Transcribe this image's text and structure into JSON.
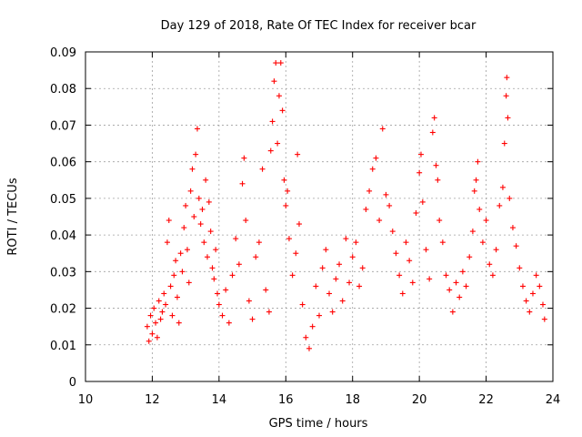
{
  "chart_data": {
    "type": "scatter",
    "title": "Day 129 of 2018, Rate Of TEC Index for receiver bcar",
    "xlabel": "GPS time / hours",
    "ylabel": "ROTI / TECUs",
    "xlim": [
      10,
      24
    ],
    "ylim": [
      0,
      0.09
    ],
    "x_ticks": [
      "10",
      "12",
      "14",
      "16",
      "18",
      "20",
      "22",
      "24"
    ],
    "y_ticks": [
      "0",
      "0.01",
      "0.02",
      "0.03",
      "0.04",
      "0.05",
      "0.06",
      "0.07",
      "0.08",
      "0.09"
    ],
    "grid": true,
    "marker": "+",
    "series": [
      {
        "color": "#ff0000",
        "points": [
          [
            11.85,
            0.015
          ],
          [
            11.9,
            0.011
          ],
          [
            11.95,
            0.018
          ],
          [
            12.0,
            0.013
          ],
          [
            12.05,
            0.02
          ],
          [
            12.1,
            0.016
          ],
          [
            12.15,
            0.012
          ],
          [
            12.2,
            0.022
          ],
          [
            12.25,
            0.017
          ],
          [
            12.3,
            0.019
          ],
          [
            12.35,
            0.024
          ],
          [
            12.4,
            0.021
          ],
          [
            12.45,
            0.038
          ],
          [
            12.5,
            0.044
          ],
          [
            12.55,
            0.026
          ],
          [
            12.6,
            0.018
          ],
          [
            12.65,
            0.029
          ],
          [
            12.7,
            0.033
          ],
          [
            12.75,
            0.023
          ],
          [
            12.8,
            0.016
          ],
          [
            12.85,
            0.035
          ],
          [
            12.9,
            0.03
          ],
          [
            12.95,
            0.042
          ],
          [
            13.0,
            0.048
          ],
          [
            13.05,
            0.036
          ],
          [
            13.1,
            0.027
          ],
          [
            13.15,
            0.052
          ],
          [
            13.2,
            0.058
          ],
          [
            13.25,
            0.045
          ],
          [
            13.3,
            0.062
          ],
          [
            13.35,
            0.069
          ],
          [
            13.4,
            0.05
          ],
          [
            13.45,
            0.043
          ],
          [
            13.5,
            0.047
          ],
          [
            13.55,
            0.038
          ],
          [
            13.6,
            0.055
          ],
          [
            13.65,
            0.034
          ],
          [
            13.7,
            0.049
          ],
          [
            13.75,
            0.041
          ],
          [
            13.8,
            0.031
          ],
          [
            13.85,
            0.028
          ],
          [
            13.9,
            0.036
          ],
          [
            13.95,
            0.024
          ],
          [
            14.0,
            0.021
          ],
          [
            14.1,
            0.018
          ],
          [
            14.2,
            0.025
          ],
          [
            14.3,
            0.016
          ],
          [
            14.4,
            0.029
          ],
          [
            14.5,
            0.039
          ],
          [
            14.6,
            0.032
          ],
          [
            14.7,
            0.054
          ],
          [
            14.75,
            0.061
          ],
          [
            14.8,
            0.044
          ],
          [
            14.9,
            0.022
          ],
          [
            15.0,
            0.017
          ],
          [
            15.1,
            0.034
          ],
          [
            15.2,
            0.038
          ],
          [
            15.3,
            0.058
          ],
          [
            15.4,
            0.025
          ],
          [
            15.5,
            0.019
          ],
          [
            15.55,
            0.063
          ],
          [
            15.6,
            0.071
          ],
          [
            15.65,
            0.082
          ],
          [
            15.7,
            0.087
          ],
          [
            15.75,
            0.065
          ],
          [
            15.8,
            0.078
          ],
          [
            15.85,
            0.087
          ],
          [
            15.9,
            0.074
          ],
          [
            15.95,
            0.055
          ],
          [
            16.0,
            0.048
          ],
          [
            16.05,
            0.052
          ],
          [
            16.1,
            0.039
          ],
          [
            16.2,
            0.029
          ],
          [
            16.3,
            0.035
          ],
          [
            16.35,
            0.062
          ],
          [
            16.4,
            0.043
          ],
          [
            16.5,
            0.021
          ],
          [
            16.6,
            0.012
          ],
          [
            16.7,
            0.009
          ],
          [
            16.8,
            0.015
          ],
          [
            16.9,
            0.026
          ],
          [
            17.0,
            0.018
          ],
          [
            17.1,
            0.031
          ],
          [
            17.2,
            0.036
          ],
          [
            17.3,
            0.024
          ],
          [
            17.4,
            0.019
          ],
          [
            17.5,
            0.028
          ],
          [
            17.6,
            0.032
          ],
          [
            17.7,
            0.022
          ],
          [
            17.8,
            0.039
          ],
          [
            17.9,
            0.027
          ],
          [
            18.0,
            0.034
          ],
          [
            18.1,
            0.038
          ],
          [
            18.2,
            0.026
          ],
          [
            18.3,
            0.031
          ],
          [
            18.4,
            0.047
          ],
          [
            18.5,
            0.052
          ],
          [
            18.6,
            0.058
          ],
          [
            18.7,
            0.061
          ],
          [
            18.8,
            0.044
          ],
          [
            18.9,
            0.069
          ],
          [
            19.0,
            0.051
          ],
          [
            19.1,
            0.048
          ],
          [
            19.2,
            0.041
          ],
          [
            19.3,
            0.035
          ],
          [
            19.4,
            0.029
          ],
          [
            19.5,
            0.024
          ],
          [
            19.6,
            0.038
          ],
          [
            19.7,
            0.033
          ],
          [
            19.8,
            0.027
          ],
          [
            19.9,
            0.046
          ],
          [
            20.0,
            0.057
          ],
          [
            20.05,
            0.062
          ],
          [
            20.1,
            0.049
          ],
          [
            20.2,
            0.036
          ],
          [
            20.3,
            0.028
          ],
          [
            20.4,
            0.068
          ],
          [
            20.45,
            0.072
          ],
          [
            20.5,
            0.059
          ],
          [
            20.55,
            0.055
          ],
          [
            20.6,
            0.044
          ],
          [
            20.7,
            0.038
          ],
          [
            20.8,
            0.029
          ],
          [
            20.9,
            0.025
          ],
          [
            21.0,
            0.019
          ],
          [
            21.1,
            0.027
          ],
          [
            21.2,
            0.023
          ],
          [
            21.3,
            0.03
          ],
          [
            21.4,
            0.026
          ],
          [
            21.5,
            0.034
          ],
          [
            21.6,
            0.041
          ],
          [
            21.65,
            0.052
          ],
          [
            21.7,
            0.055
          ],
          [
            21.75,
            0.06
          ],
          [
            21.8,
            0.047
          ],
          [
            21.9,
            0.038
          ],
          [
            22.0,
            0.044
          ],
          [
            22.1,
            0.032
          ],
          [
            22.2,
            0.029
          ],
          [
            22.3,
            0.036
          ],
          [
            22.4,
            0.048
          ],
          [
            22.5,
            0.053
          ],
          [
            22.55,
            0.065
          ],
          [
            22.6,
            0.078
          ],
          [
            22.62,
            0.083
          ],
          [
            22.65,
            0.072
          ],
          [
            22.7,
            0.05
          ],
          [
            22.8,
            0.042
          ],
          [
            22.9,
            0.037
          ],
          [
            23.0,
            0.031
          ],
          [
            23.1,
            0.026
          ],
          [
            23.2,
            0.022
          ],
          [
            23.3,
            0.019
          ],
          [
            23.4,
            0.024
          ],
          [
            23.5,
            0.029
          ],
          [
            23.6,
            0.026
          ],
          [
            23.7,
            0.021
          ],
          [
            23.75,
            0.017
          ]
        ]
      }
    ]
  }
}
